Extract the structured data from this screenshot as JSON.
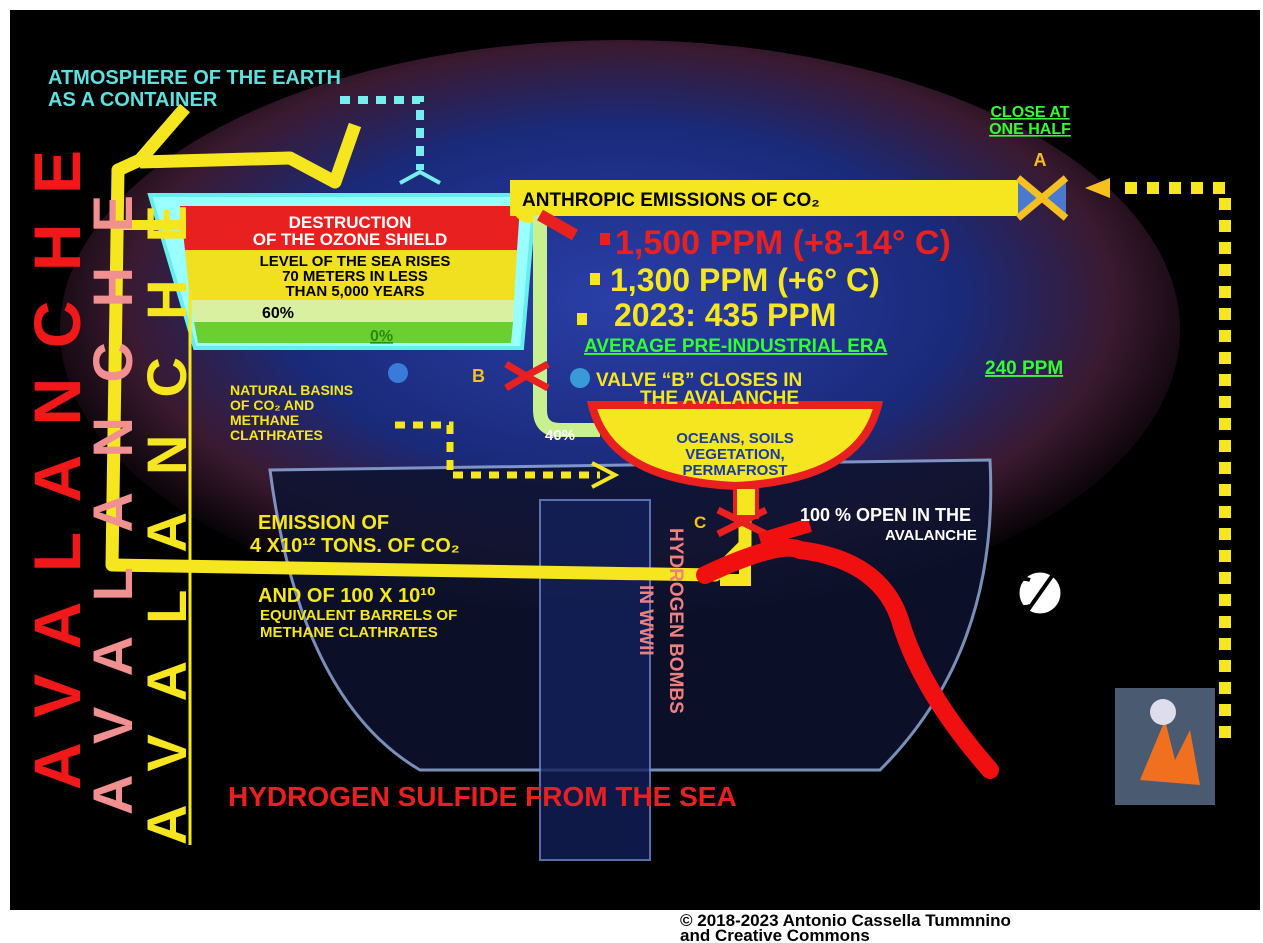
{
  "atmosphere": [
    "ATMOSPHERE OF THE EARTH",
    "AS A CONTAINER"
  ],
  "close_valve": [
    "CLOSE AT",
    "ONE HALF"
  ],
  "valve_a": "A",
  "valve_b": "B",
  "valve_c": "C",
  "anthropic": "ANTHROPIC EMISSIONS OF CO₂",
  "container": {
    "ozone": [
      "DESTRUCTION",
      "OF THE OZONE SHIELD"
    ],
    "sea_level": [
      "LEVEL OF THE SEA RISES",
      "70 METERS IN LESS",
      "THAN 5,000 YEARS"
    ],
    "level_60": "60%",
    "level_0": "0%"
  },
  "concentrations": [
    "1,500 PPM (+8-14° C)",
    "1,300 PPM (+6° C)",
    "2023: 435 PPM"
  ],
  "preindustrial": [
    "AVERAGE PRE-INDUSTRIAL ERA",
    "240 PPM"
  ],
  "valve_b_note": [
    "VALVE “B” CLOSES IN",
    "THE AVALANCHE"
  ],
  "natural_basins": [
    "NATURAL BASINS",
    "OF CO₂ AND",
    "METHANE",
    "CLATHRATES"
  ],
  "flow_40": "40%",
  "sinks": [
    "OCEANS, SOILS",
    "VEGETATION,",
    "PERMAFROST"
  ],
  "valve_c_note": [
    "100 % OPEN IN THE",
    "AVALANCHE"
  ],
  "emission": [
    "EMISSION OF",
    "4 X10¹² TONS. OF CO₂"
  ],
  "methane": [
    "AND OF 100 X 10¹⁰",
    "EQUIVALENT BARRELS OF",
    "METHANE CLATHRATES"
  ],
  "hydrogen_bombs": [
    "HYDROGEN BOMBS",
    "IN WWII"
  ],
  "hydrogen_sulfide": "HYDROGEN SULFIDE FROM THE SEA",
  "avalanche": [
    "AVALANCHE",
    "AVALANCHE",
    "AVALANCHE"
  ],
  "copyright": [
    "© 2018-2023  Antonio Cassella Tummnino",
    "and Creative Commons"
  ]
}
